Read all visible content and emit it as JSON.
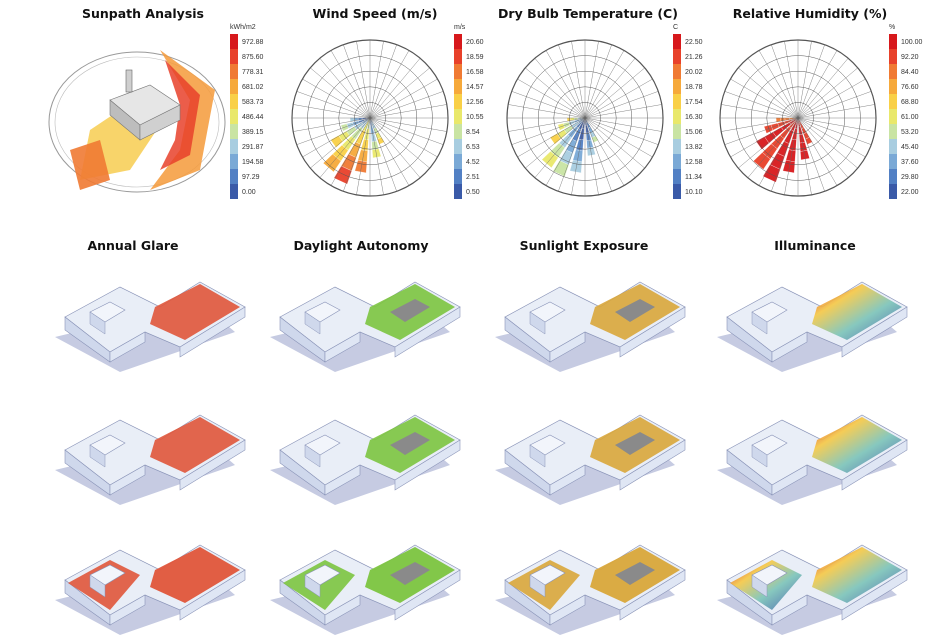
{
  "titles": [
    "Sunpath Analysis",
    "Wind Speed (m/s)",
    "Dry Bulb Temperature (C)",
    "Relative Humidity (%)",
    "Annual Glare",
    "Daylight Autonomy",
    "Sunlight Exposure",
    "Illuminance"
  ],
  "legends": {
    "sunpath": {
      "unit": "kWh/m2",
      "labels": [
        "972.88",
        "875.60",
        "778.31",
        "681.02",
        "583.73",
        "486.44",
        "389.15",
        "291.87",
        "194.58",
        "97.29",
        "0.00"
      ]
    },
    "wind": {
      "unit": "m/s",
      "labels": [
        "20.60",
        "18.59",
        "16.58",
        "14.57",
        "12.56",
        "10.55",
        "8.54",
        "6.53",
        "4.52",
        "2.51",
        "0.50"
      ]
    },
    "temp": {
      "unit": "C",
      "labels": [
        "22.50",
        "21.26",
        "20.02",
        "18.78",
        "17.54",
        "16.30",
        "15.06",
        "13.82",
        "12.58",
        "11.34",
        "10.10"
      ]
    },
    "rh": {
      "unit": "%",
      "labels": [
        "100.00",
        "92.20",
        "84.40",
        "76.60",
        "68.80",
        "61.00",
        "53.20",
        "45.40",
        "37.60",
        "29.80",
        "22.00"
      ]
    }
  },
  "colors": {
    "scale": [
      "#d7191c",
      "#e8412a",
      "#f07a33",
      "#f6a93b",
      "#f9d047",
      "#e9e86b",
      "#c9e4a3",
      "#a8cde0",
      "#7aa9d6",
      "#5280c4",
      "#3a5aa8"
    ],
    "glare": "#e0553a",
    "autonomy": "#7cc43f",
    "exposure": "#d9a63a",
    "building": "#e9eef7",
    "shadow": "#c6cbe2"
  }
}
